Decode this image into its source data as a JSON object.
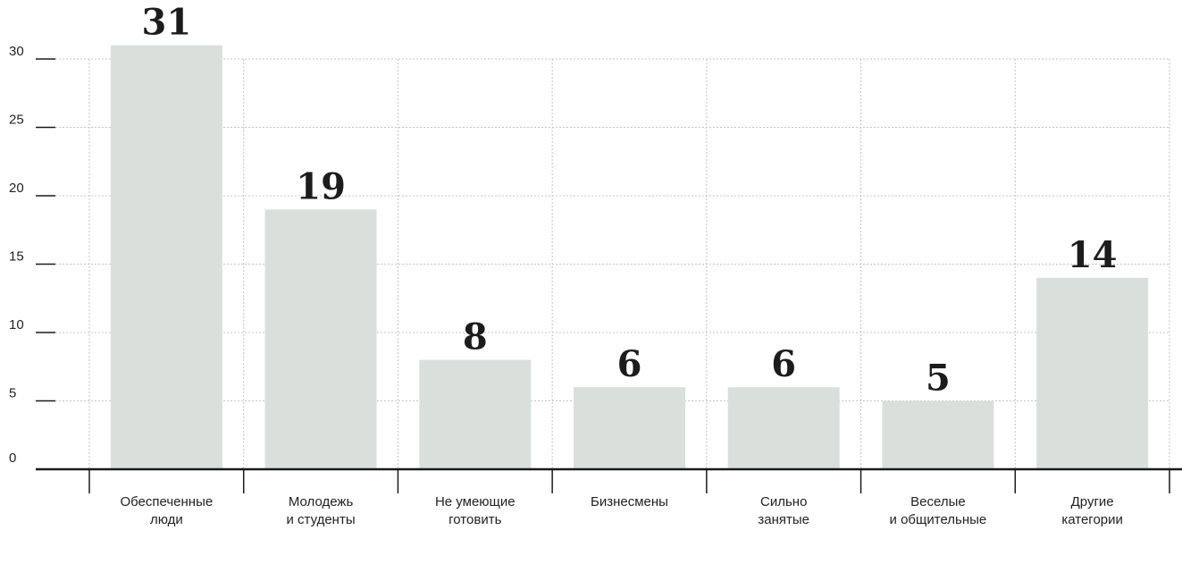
{
  "chart_data": {
    "type": "bar",
    "categories": [
      [
        "Обеспеченные",
        "люди"
      ],
      [
        "Молодежь",
        "и студенты"
      ],
      [
        "Не умеющие",
        "готовить"
      ],
      [
        "Бизнесмены"
      ],
      [
        "Сильно",
        "занятые"
      ],
      [
        "Веселые",
        "и общительные"
      ],
      [
        "Другие",
        "категории"
      ]
    ],
    "values": [
      31,
      19,
      8,
      6,
      6,
      5,
      14
    ],
    "y_ticks": [
      0,
      5,
      10,
      15,
      20,
      25,
      30
    ],
    "ylim": [
      0,
      30
    ],
    "grid": true,
    "colors": {
      "bar": "#d9e0dc",
      "axis": "#1a1a1a",
      "grid": "#c4c4c4"
    }
  }
}
